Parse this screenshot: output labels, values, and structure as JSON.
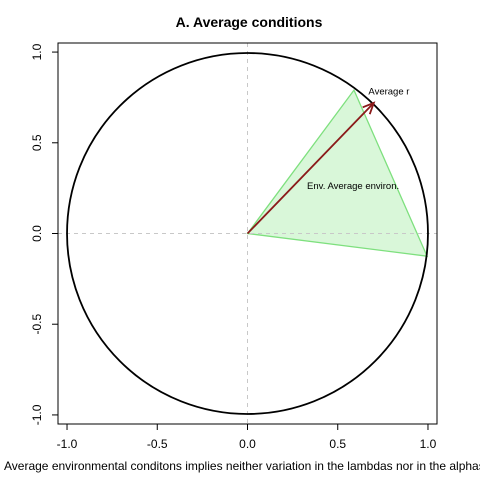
{
  "chart_data": {
    "type": "scatter",
    "title": "A. Average conditions",
    "xlabel": "Average environmental conditons implies neither variation in the lambdas nor in the alphas",
    "ylabel": "",
    "xlim": [
      -1.05,
      1.05
    ],
    "ylim": [
      -1.05,
      1.05
    ],
    "x_ticks": [
      "-1.0",
      "-0.5",
      "0.0",
      "0.5",
      "1.0"
    ],
    "y_ticks": [
      "-1.0",
      "-0.5",
      "0.0",
      "0.5",
      "1.0"
    ],
    "grid": false,
    "reference_lines": {
      "x": 0,
      "y": 0,
      "style": "dashed",
      "color": "#c8c8c8"
    },
    "unit_circle": {
      "radius": 1,
      "color": "#000000"
    },
    "feasibility_cone": {
      "vertices": [
        [
          0,
          0
        ],
        [
          0.59,
          0.79
        ],
        [
          0.995,
          -0.125
        ]
      ],
      "fill": "#d9f7d9",
      "stroke": "#7ee07e"
    },
    "vector": {
      "from": [
        0,
        0
      ],
      "to": [
        0.7,
        0.72
      ],
      "color": "#8b1a1a"
    },
    "annotations": [
      {
        "text": "Average r",
        "x": 0.67,
        "y": 0.765
      },
      {
        "text": "Env. Average environ.",
        "x": 0.33,
        "y": 0.245
      }
    ]
  }
}
